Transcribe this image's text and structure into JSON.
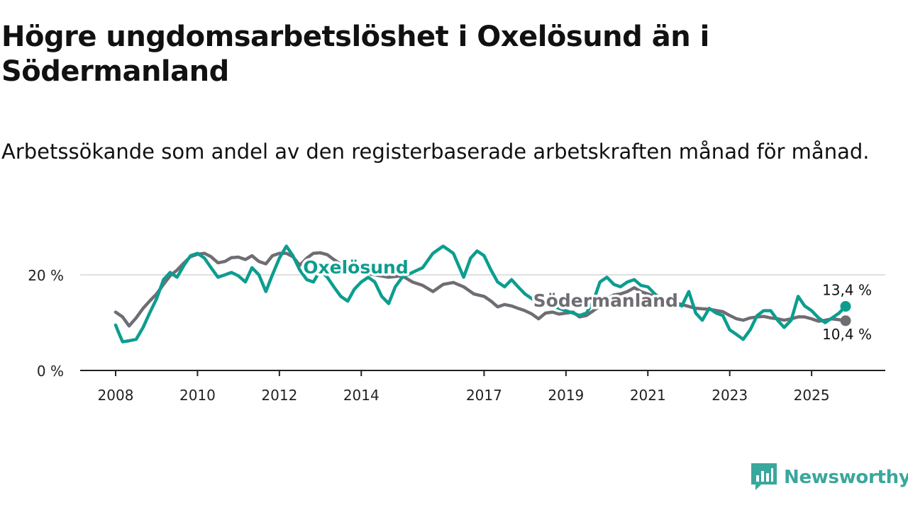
{
  "header": {
    "title": "Högre ungdomsarbetslöshet i Oxelösund än i Södermanland",
    "subtitle": "Arbetssökande som andel av den registerbaserade arbetskraften månad för månad."
  },
  "brand": {
    "name": "Newsworthy",
    "icon": "bar-chart-logo-icon",
    "color": "#3aa79d"
  },
  "chart_data": {
    "type": "line",
    "title": "Högre ungdomsarbetslöshet i Oxelösund än i Södermanland",
    "xlabel": "",
    "ylabel": "",
    "ylim": [
      0,
      27
    ],
    "xlim": [
      2008,
      2026.8
    ],
    "yticks": [
      {
        "value": 0,
        "label": "0 %"
      },
      {
        "value": 20,
        "label": "20 %"
      }
    ],
    "xticks": [
      2008,
      2010,
      2012,
      2014,
      2017,
      2019,
      2021,
      2023,
      2025
    ],
    "grid": "horizontal",
    "series": [
      {
        "name": "Södermanland",
        "color": "#6f6d73",
        "end_label": "10,4 %",
        "end_value": 10.4,
        "points": [
          [
            2008.0,
            12.2
          ],
          [
            2008.17,
            11.2
          ],
          [
            2008.33,
            9.3
          ],
          [
            2008.5,
            11.0
          ],
          [
            2008.67,
            13.0
          ],
          [
            2008.83,
            14.5
          ],
          [
            2009.0,
            16.0
          ],
          [
            2009.17,
            18.0
          ],
          [
            2009.33,
            19.8
          ],
          [
            2009.5,
            21.0
          ],
          [
            2009.67,
            22.5
          ],
          [
            2009.83,
            23.8
          ],
          [
            2010.0,
            24.3
          ],
          [
            2010.17,
            24.5
          ],
          [
            2010.33,
            23.8
          ],
          [
            2010.5,
            22.5
          ],
          [
            2010.67,
            22.8
          ],
          [
            2010.83,
            23.6
          ],
          [
            2011.0,
            23.7
          ],
          [
            2011.17,
            23.2
          ],
          [
            2011.33,
            24.0
          ],
          [
            2011.5,
            22.8
          ],
          [
            2011.67,
            22.3
          ],
          [
            2011.83,
            24.0
          ],
          [
            2012.0,
            24.5
          ],
          [
            2012.17,
            24.5
          ],
          [
            2012.33,
            23.8
          ],
          [
            2012.5,
            22.0
          ],
          [
            2012.67,
            23.5
          ],
          [
            2012.83,
            24.5
          ],
          [
            2013.0,
            24.6
          ],
          [
            2013.17,
            24.2
          ],
          [
            2013.33,
            23.2
          ],
          [
            2013.5,
            22.2
          ],
          [
            2013.67,
            21.8
          ],
          [
            2013.83,
            21.0
          ],
          [
            2014.0,
            20.5
          ],
          [
            2014.33,
            20.0
          ],
          [
            2014.67,
            19.5
          ],
          [
            2015.0,
            19.8
          ],
          [
            2015.25,
            18.5
          ],
          [
            2015.5,
            17.8
          ],
          [
            2015.75,
            16.5
          ],
          [
            2016.0,
            18.0
          ],
          [
            2016.25,
            18.4
          ],
          [
            2016.5,
            17.5
          ],
          [
            2016.75,
            16.0
          ],
          [
            2017.0,
            15.5
          ],
          [
            2017.17,
            14.5
          ],
          [
            2017.33,
            13.3
          ],
          [
            2017.5,
            13.8
          ],
          [
            2017.67,
            13.5
          ],
          [
            2017.83,
            13.0
          ],
          [
            2018.0,
            12.5
          ],
          [
            2018.17,
            11.8
          ],
          [
            2018.33,
            10.8
          ],
          [
            2018.5,
            12.0
          ],
          [
            2018.67,
            12.2
          ],
          [
            2018.83,
            11.8
          ],
          [
            2019.0,
            12.0
          ],
          [
            2019.17,
            12.2
          ],
          [
            2019.33,
            11.2
          ],
          [
            2019.5,
            11.5
          ],
          [
            2019.67,
            12.5
          ],
          [
            2019.83,
            13.5
          ],
          [
            2020.0,
            15.0
          ],
          [
            2020.17,
            15.8
          ],
          [
            2020.33,
            16.0
          ],
          [
            2020.5,
            16.5
          ],
          [
            2020.67,
            17.3
          ],
          [
            2020.83,
            16.5
          ],
          [
            2021.0,
            16.0
          ],
          [
            2021.17,
            15.5
          ],
          [
            2021.5,
            14.5
          ],
          [
            2021.83,
            13.8
          ],
          [
            2022.17,
            13.0
          ],
          [
            2022.5,
            12.8
          ],
          [
            2022.83,
            12.3
          ],
          [
            2023.0,
            11.5
          ],
          [
            2023.17,
            10.8
          ],
          [
            2023.33,
            10.5
          ],
          [
            2023.5,
            11.0
          ],
          [
            2023.67,
            11.2
          ],
          [
            2023.83,
            11.3
          ],
          [
            2024.0,
            11.0
          ],
          [
            2024.17,
            10.8
          ],
          [
            2024.33,
            10.5
          ],
          [
            2024.5,
            10.8
          ],
          [
            2024.67,
            11.2
          ],
          [
            2024.83,
            11.2
          ],
          [
            2025.0,
            10.8
          ],
          [
            2025.17,
            10.3
          ],
          [
            2025.33,
            10.5
          ],
          [
            2025.5,
            10.8
          ],
          [
            2025.67,
            10.6
          ],
          [
            2025.83,
            10.4
          ]
        ]
      },
      {
        "name": "Oxelösund",
        "color": "#0c9d8f",
        "end_label": "13,4 %",
        "end_value": 13.4,
        "points": [
          [
            2008.0,
            9.5
          ],
          [
            2008.08,
            7.8
          ],
          [
            2008.17,
            6.0
          ],
          [
            2008.33,
            6.2
          ],
          [
            2008.5,
            6.5
          ],
          [
            2008.67,
            9.0
          ],
          [
            2008.83,
            12.0
          ],
          [
            2009.0,
            15.0
          ],
          [
            2009.17,
            19.0
          ],
          [
            2009.33,
            20.5
          ],
          [
            2009.5,
            19.5
          ],
          [
            2009.67,
            22.0
          ],
          [
            2009.83,
            24.0
          ],
          [
            2010.0,
            24.5
          ],
          [
            2010.17,
            23.5
          ],
          [
            2010.33,
            21.5
          ],
          [
            2010.5,
            19.5
          ],
          [
            2010.67,
            20.0
          ],
          [
            2010.83,
            20.5
          ],
          [
            2011.0,
            19.8
          ],
          [
            2011.17,
            18.5
          ],
          [
            2011.33,
            21.5
          ],
          [
            2011.5,
            20.0
          ],
          [
            2011.67,
            16.5
          ],
          [
            2011.83,
            20.0
          ],
          [
            2012.0,
            23.5
          ],
          [
            2012.17,
            26.0
          ],
          [
            2012.33,
            24.0
          ],
          [
            2012.5,
            21.0
          ],
          [
            2012.67,
            19.0
          ],
          [
            2012.83,
            18.5
          ],
          [
            2013.0,
            21.0
          ],
          [
            2013.17,
            19.5
          ],
          [
            2013.33,
            17.5
          ],
          [
            2013.5,
            15.5
          ],
          [
            2013.67,
            14.5
          ],
          [
            2013.83,
            17.0
          ],
          [
            2014.0,
            18.5
          ],
          [
            2014.17,
            19.5
          ],
          [
            2014.33,
            18.5
          ],
          [
            2014.5,
            15.5
          ],
          [
            2014.67,
            14.0
          ],
          [
            2014.83,
            17.5
          ],
          [
            2015.0,
            19.5
          ],
          [
            2015.25,
            20.5
          ],
          [
            2015.5,
            21.5
          ],
          [
            2015.75,
            24.5
          ],
          [
            2016.0,
            26.0
          ],
          [
            2016.25,
            24.5
          ],
          [
            2016.5,
            19.5
          ],
          [
            2016.67,
            23.5
          ],
          [
            2016.83,
            25.0
          ],
          [
            2017.0,
            24.0
          ],
          [
            2017.17,
            21.0
          ],
          [
            2017.33,
            18.5
          ],
          [
            2017.5,
            17.5
          ],
          [
            2017.67,
            19.0
          ],
          [
            2017.83,
            17.5
          ],
          [
            2018.0,
            16.0
          ],
          [
            2018.17,
            15.0
          ],
          [
            2018.33,
            14.5
          ],
          [
            2018.5,
            14.0
          ],
          [
            2018.67,
            13.5
          ],
          [
            2018.83,
            13.0
          ],
          [
            2019.0,
            12.5
          ],
          [
            2019.17,
            12.0
          ],
          [
            2019.33,
            11.5
          ],
          [
            2019.5,
            12.0
          ],
          [
            2019.67,
            14.5
          ],
          [
            2019.83,
            18.5
          ],
          [
            2020.0,
            19.5
          ],
          [
            2020.17,
            18.0
          ],
          [
            2020.33,
            17.5
          ],
          [
            2020.5,
            18.5
          ],
          [
            2020.67,
            19.0
          ],
          [
            2020.83,
            17.8
          ],
          [
            2021.0,
            17.5
          ],
          [
            2021.17,
            16.0
          ],
          [
            2021.33,
            15.0
          ],
          [
            2021.5,
            14.5
          ],
          [
            2021.67,
            14.0
          ],
          [
            2021.83,
            13.5
          ],
          [
            2022.0,
            16.5
          ],
          [
            2022.17,
            12.0
          ],
          [
            2022.33,
            10.5
          ],
          [
            2022.5,
            13.0
          ],
          [
            2022.67,
            12.0
          ],
          [
            2022.83,
            11.5
          ],
          [
            2023.0,
            8.5
          ],
          [
            2023.17,
            7.5
          ],
          [
            2023.33,
            6.5
          ],
          [
            2023.5,
            8.5
          ],
          [
            2023.67,
            11.5
          ],
          [
            2023.83,
            12.5
          ],
          [
            2024.0,
            12.5
          ],
          [
            2024.17,
            10.5
          ],
          [
            2024.33,
            9.0
          ],
          [
            2024.5,
            10.5
          ],
          [
            2024.67,
            15.5
          ],
          [
            2024.83,
            13.5
          ],
          [
            2025.0,
            12.5
          ],
          [
            2025.17,
            11.0
          ],
          [
            2025.33,
            10.0
          ],
          [
            2025.5,
            11.0
          ],
          [
            2025.67,
            12.0
          ],
          [
            2025.83,
            13.4
          ]
        ]
      }
    ],
    "annotations": [
      {
        "series": "Oxelösund",
        "text": "Oxelösund",
        "x": 2014.0,
        "y": 21.5
      },
      {
        "series": "Södermanland",
        "text": "Södermanland",
        "x": 2018.2,
        "y": 14.5
      }
    ]
  }
}
